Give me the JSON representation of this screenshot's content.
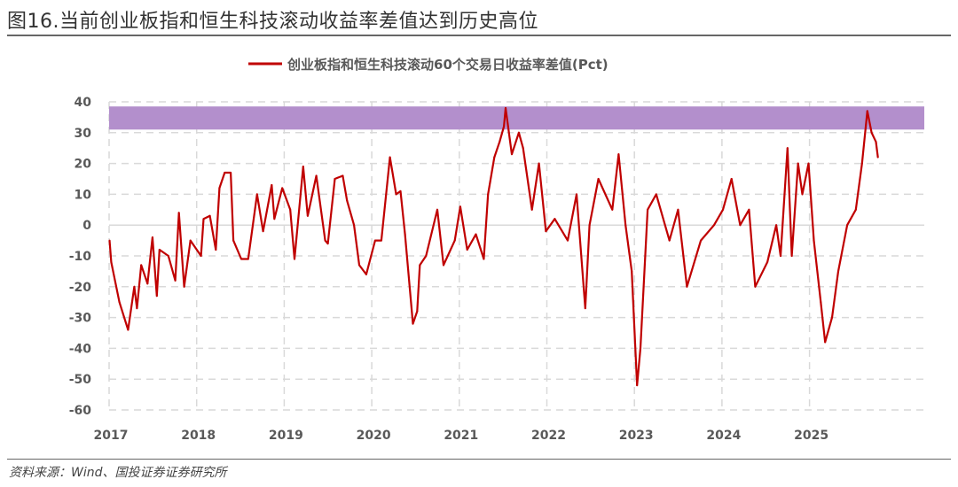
{
  "title": "图16.当前创业板指和恒生科技滚动收益率差值达到历史高位",
  "source": "资料来源：Wind、国投证券证券研究所",
  "chart_data": {
    "type": "line",
    "title": "",
    "legend": {
      "position": "top-center"
    },
    "xlabel": "",
    "ylabel": "",
    "ylim": [
      -60,
      40
    ],
    "yticks": [
      "40",
      "30",
      "20",
      "10",
      "0",
      "-10",
      "-20",
      "-30",
      "-40",
      "-50",
      "-60"
    ],
    "xticks": [
      "2017",
      "2018",
      "2019",
      "2020",
      "2021",
      "2022",
      "2023",
      "2024",
      "2025"
    ],
    "grid": "dashed, both axes",
    "highlight_band": {
      "y_from": 31,
      "y_to": 38.5,
      "color": "#b38fcc"
    },
    "series": [
      {
        "name": "创业板指和恒生科技滚动60个交易日收益率差值(Pct)",
        "color": "#c00000",
        "points": [
          [
            "2017-01-03",
            -5
          ],
          [
            "2017-01-10",
            -12
          ],
          [
            "2017-02-13",
            -25
          ],
          [
            "2017-03-21",
            -34
          ],
          [
            "2017-04-16",
            -20
          ],
          [
            "2017-04-27",
            -27
          ],
          [
            "2017-05-15",
            -13
          ],
          [
            "2017-06-10",
            -19
          ],
          [
            "2017-07-01",
            -4
          ],
          [
            "2017-07-19",
            -23
          ],
          [
            "2017-07-30",
            -8
          ],
          [
            "2017-09-05",
            -10
          ],
          [
            "2017-10-04",
            -18
          ],
          [
            "2017-10-19",
            4
          ],
          [
            "2017-11-10",
            -20
          ],
          [
            "2017-12-06",
            -5
          ],
          [
            "2018-01-19",
            -10
          ],
          [
            "2018-01-30",
            2
          ],
          [
            "2018-02-25",
            3
          ],
          [
            "2018-03-22",
            -8
          ],
          [
            "2018-04-06",
            12
          ],
          [
            "2018-04-28",
            17
          ],
          [
            "2018-05-23",
            17
          ],
          [
            "2018-06-03",
            -5
          ],
          [
            "2018-07-06",
            -11
          ],
          [
            "2018-08-04",
            -11
          ],
          [
            "2018-09-10",
            10
          ],
          [
            "2018-10-05",
            -2
          ],
          [
            "2018-11-10",
            13
          ],
          [
            "2018-11-21",
            2
          ],
          [
            "2018-12-24",
            12
          ],
          [
            "2019-01-26",
            5
          ],
          [
            "2019-02-13",
            -11
          ],
          [
            "2019-03-21",
            19
          ],
          [
            "2019-04-09",
            3
          ],
          [
            "2019-05-15",
            16
          ],
          [
            "2019-06-21",
            -5
          ],
          [
            "2019-07-02",
            -6
          ],
          [
            "2019-07-31",
            15
          ],
          [
            "2019-09-02",
            16
          ],
          [
            "2019-09-20",
            8
          ],
          [
            "2019-10-19",
            0
          ],
          [
            "2019-11-10",
            -13
          ],
          [
            "2019-12-09",
            -16
          ],
          [
            "2020-01-15",
            -5
          ],
          [
            "2020-02-10",
            -5
          ],
          [
            "2020-03-17",
            22
          ],
          [
            "2020-04-12",
            10
          ],
          [
            "2020-04-30",
            11
          ],
          [
            "2020-05-19",
            -3
          ],
          [
            "2020-06-21",
            -32
          ],
          [
            "2020-07-09",
            -28
          ],
          [
            "2020-07-20",
            -13
          ],
          [
            "2020-08-15",
            -10
          ],
          [
            "2020-10-01",
            5
          ],
          [
            "2020-10-27",
            -13
          ],
          [
            "2020-12-13",
            -5
          ],
          [
            "2021-01-05",
            6
          ],
          [
            "2021-02-03",
            -8
          ],
          [
            "2021-03-11",
            -3
          ],
          [
            "2021-04-13",
            -11
          ],
          [
            "2021-05-01",
            10
          ],
          [
            "2021-05-27",
            22
          ],
          [
            "2021-06-18",
            27
          ],
          [
            "2021-07-06",
            32
          ],
          [
            "2021-07-13",
            38
          ],
          [
            "2021-08-08",
            23
          ],
          [
            "2021-09-06",
            30
          ],
          [
            "2021-09-24",
            25
          ],
          [
            "2021-10-31",
            5
          ],
          [
            "2021-11-29",
            20
          ],
          [
            "2021-12-28",
            -2
          ],
          [
            "2022-02-03",
            2
          ],
          [
            "2022-03-29",
            -5
          ],
          [
            "2022-05-05",
            10
          ],
          [
            "2022-06-10",
            -27
          ],
          [
            "2022-06-28",
            0
          ],
          [
            "2022-08-04",
            15
          ],
          [
            "2022-10-01",
            5
          ],
          [
            "2022-10-27",
            23
          ],
          [
            "2022-11-25",
            0
          ],
          [
            "2022-12-21",
            -15
          ],
          [
            "2023-01-12",
            -52
          ],
          [
            "2023-01-26",
            -40
          ],
          [
            "2023-02-25",
            5
          ],
          [
            "2023-04-02",
            10
          ],
          [
            "2023-05-27",
            -5
          ],
          [
            "2023-07-02",
            5
          ],
          [
            "2023-08-08",
            -20
          ],
          [
            "2023-10-05",
            -5
          ],
          [
            "2023-11-29",
            0
          ],
          [
            "2024-01-05",
            5
          ],
          [
            "2024-02-10",
            15
          ],
          [
            "2024-03-17",
            0
          ],
          [
            "2024-04-23",
            5
          ],
          [
            "2024-05-19",
            -20
          ],
          [
            "2024-07-09",
            -12
          ],
          [
            "2024-08-15",
            0
          ],
          [
            "2024-09-02",
            -10
          ],
          [
            "2024-10-01",
            25
          ],
          [
            "2024-10-19",
            -10
          ],
          [
            "2024-11-14",
            20
          ],
          [
            "2024-12-02",
            10
          ],
          [
            "2024-12-28",
            20
          ],
          [
            "2025-01-19",
            -5
          ],
          [
            "2025-02-17",
            -25
          ],
          [
            "2025-03-07",
            -38
          ],
          [
            "2025-04-05",
            -30
          ],
          [
            "2025-05-01",
            -15
          ],
          [
            "2025-06-07",
            0
          ],
          [
            "2025-07-13",
            5
          ],
          [
            "2025-08-08",
            20
          ],
          [
            "2025-08-30",
            37
          ],
          [
            "2025-09-17",
            30
          ],
          [
            "2025-10-05",
            27
          ],
          [
            "2025-10-13",
            22
          ]
        ]
      }
    ]
  }
}
